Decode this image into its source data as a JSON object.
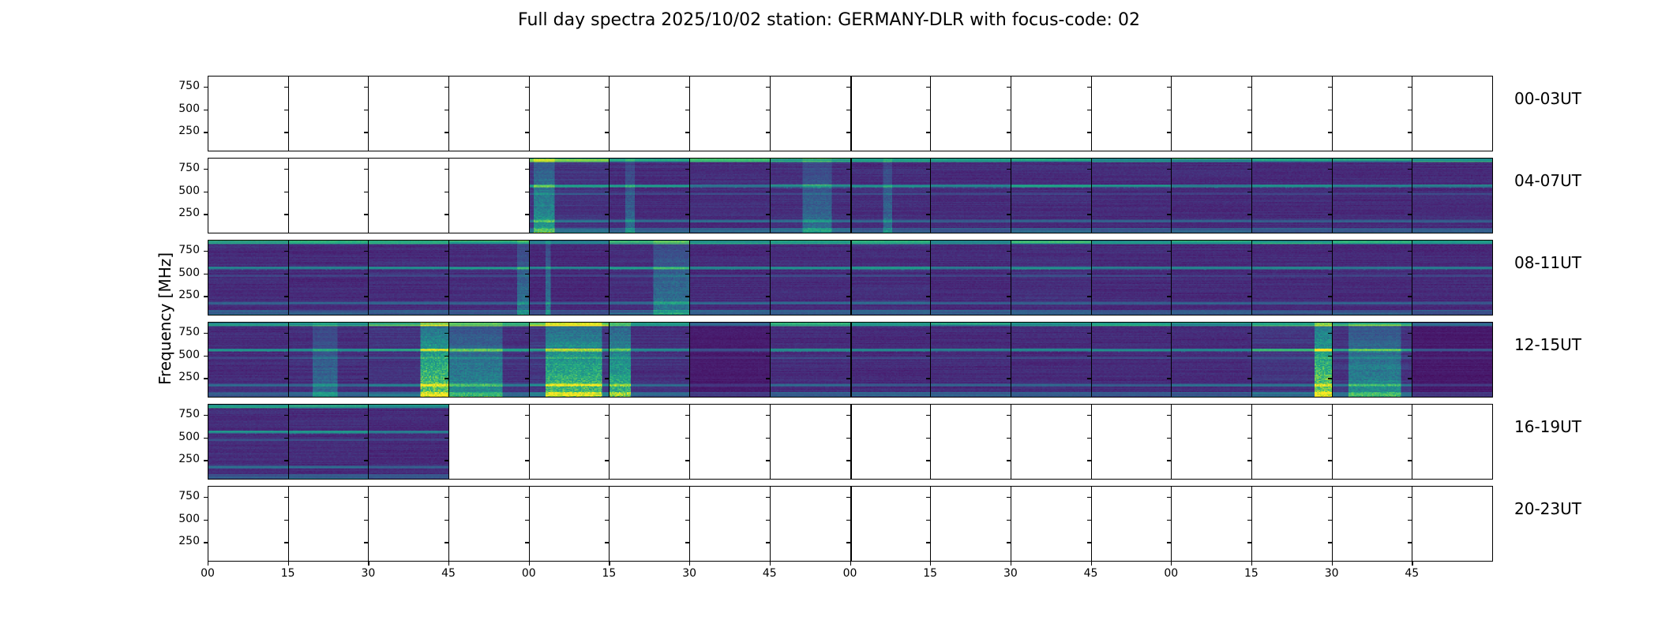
{
  "chart_data": {
    "type": "heatmap",
    "title": "Full day spectra 2025/10/02 station: GERMANY-DLR with focus-code: 02",
    "xlabel": "",
    "ylabel": "Frequency [MHz]",
    "ytick_labels": [
      "750",
      "500",
      "250"
    ],
    "ytick_values": [
      750,
      500,
      250
    ],
    "ylim": [
      45,
      870
    ],
    "xtick_labels": [
      "00",
      "15",
      "30",
      "45",
      "00",
      "15",
      "30",
      "45",
      "00",
      "15",
      "30",
      "45",
      "00",
      "15",
      "30",
      "45"
    ],
    "colormap": "viridis",
    "grid": false,
    "panel_minutes": 15,
    "rows": [
      {
        "label": "00-03UT",
        "start_hour": 0,
        "panels": [
          0,
          0,
          0,
          0,
          0,
          0,
          0,
          0,
          0,
          0,
          0,
          0,
          0,
          0,
          0,
          0
        ]
      },
      {
        "label": "04-07UT",
        "start_hour": 4,
        "panels": [
          0,
          0,
          0,
          0,
          0.55,
          0.35,
          0.35,
          0.45,
          0.35,
          0.3,
          0.35,
          0.3,
          0.3,
          0.3,
          0.3,
          0.3
        ]
      },
      {
        "label": "08-11UT",
        "start_hour": 8,
        "panels": [
          0.35,
          0.3,
          0.35,
          0.35,
          0.2,
          0.4,
          0.3,
          0.35,
          0.4,
          0.3,
          0.4,
          0.3,
          0.3,
          0.3,
          0.3,
          0.25
        ]
      },
      {
        "label": "12-15UT",
        "start_hour": 12,
        "panels": [
          0.35,
          0.4,
          0.55,
          0.5,
          0.7,
          0.4,
          0.15,
          0.35,
          0.3,
          0.3,
          0.3,
          0.3,
          0.3,
          0.6,
          0.55,
          0.12
        ]
      },
      {
        "label": "16-19UT",
        "start_hour": 16,
        "panels": [
          0.35,
          0.35,
          0.3,
          0,
          0,
          0,
          0,
          0,
          0,
          0,
          0,
          0,
          0,
          0,
          0,
          0
        ]
      },
      {
        "label": "20-23UT",
        "start_hour": 20,
        "panels": [
          0,
          0,
          0,
          0,
          0,
          0,
          0,
          0,
          0,
          0,
          0,
          0,
          0,
          0,
          0,
          0
        ]
      }
    ],
    "bursts": [
      {
        "row": 1,
        "panel": 4,
        "from": 0.05,
        "to": 0.3,
        "strength": 0.5
      },
      {
        "row": 1,
        "panel": 5,
        "from": 0.2,
        "to": 0.3,
        "strength": 0.3
      },
      {
        "row": 1,
        "panel": 7,
        "from": 0.4,
        "to": 0.75,
        "strength": 0.3
      },
      {
        "row": 1,
        "panel": 8,
        "from": 0.4,
        "to": 0.5,
        "strength": 0.3
      },
      {
        "row": 2,
        "panel": 4,
        "from": 0.2,
        "to": 0.25,
        "strength": 0.4
      },
      {
        "row": 2,
        "panel": 5,
        "from": 0.55,
        "to": 1.0,
        "strength": 0.35
      },
      {
        "row": 2,
        "panel": 3,
        "from": 0.85,
        "to": 1.0,
        "strength": 0.35
      },
      {
        "row": 3,
        "panel": 1,
        "from": 0.3,
        "to": 0.6,
        "strength": 0.3
      },
      {
        "row": 3,
        "panel": 2,
        "from": 0.65,
        "to": 1.0,
        "strength": 0.85
      },
      {
        "row": 3,
        "panel": 3,
        "from": 0.0,
        "to": 0.65,
        "strength": 0.45
      },
      {
        "row": 3,
        "panel": 4,
        "from": 0.2,
        "to": 0.9,
        "strength": 0.75
      },
      {
        "row": 3,
        "panel": 5,
        "from": 0.0,
        "to": 0.25,
        "strength": 0.7
      },
      {
        "row": 3,
        "panel": 13,
        "from": 0.78,
        "to": 1.0,
        "strength": 0.9
      },
      {
        "row": 3,
        "panel": 14,
        "from": 0.2,
        "to": 0.85,
        "strength": 0.45
      }
    ]
  }
}
